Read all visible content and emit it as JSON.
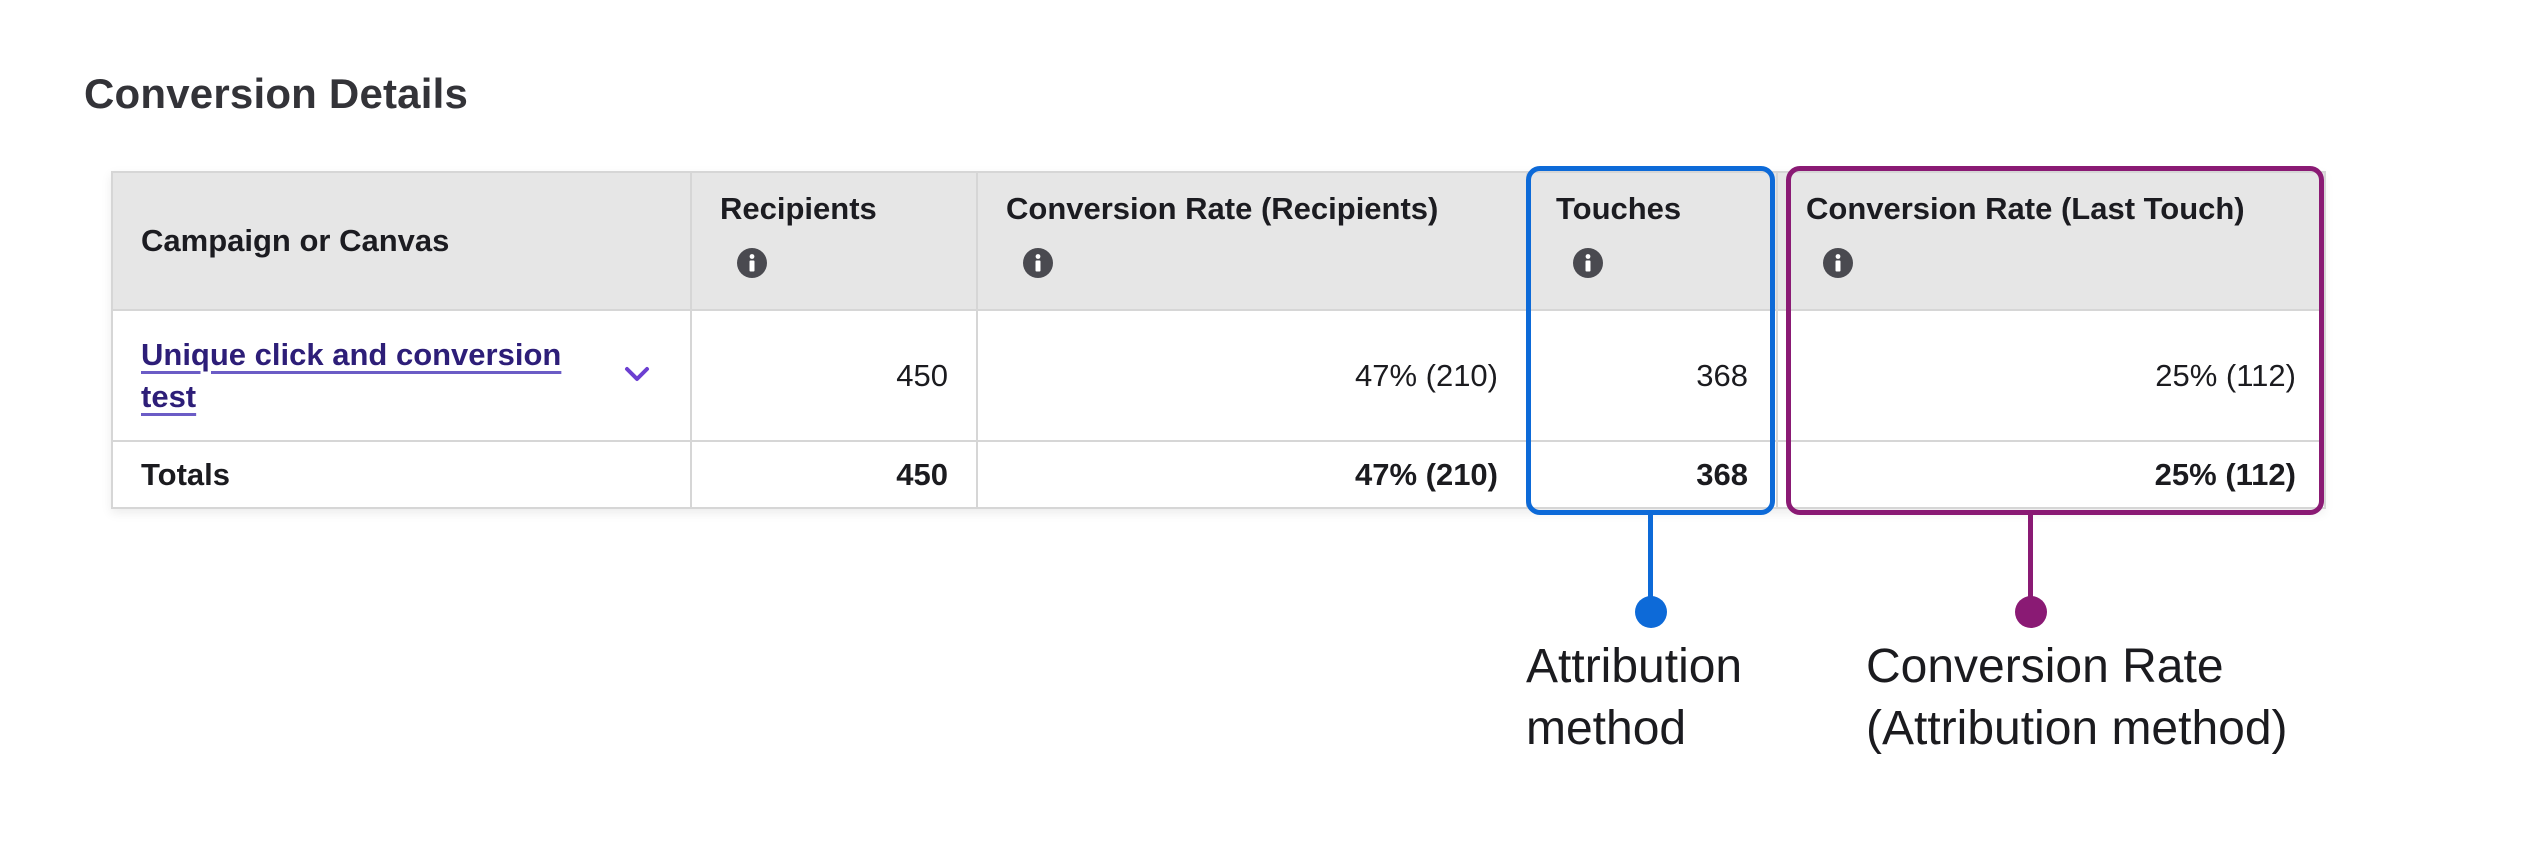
{
  "page_title": "Conversion Details",
  "table": {
    "headers": [
      "Campaign or Canvas",
      "Recipients",
      "Conversion Rate (Recipients)",
      "Touches",
      "Conversion Rate (Last Touch)"
    ],
    "rows": [
      {
        "name": "Unique click and conversion test",
        "recipients": "450",
        "conv_rate_recipients": "47% (210)",
        "touches": "368",
        "conv_rate_last_touch": "25% (112)"
      }
    ],
    "totals": {
      "label": "Totals",
      "recipients": "450",
      "conv_rate_recipients": "47% (210)",
      "touches": "368",
      "conv_rate_last_touch": "25% (112)"
    }
  },
  "annotations": {
    "attribution": {
      "line1": "Attribution",
      "line2": "method"
    },
    "conversion": {
      "line1": "Conversion Rate",
      "line2": "(Attribution method)"
    }
  },
  "icons": {
    "info": "info-icon",
    "expand": "chevron-down-icon"
  },
  "colors": {
    "highlight_touches": "#0d6ad8",
    "highlight_conversion": "#8a1a74",
    "link": "#2d1e78",
    "chevron": "#6c3fd1",
    "header_bg": "#e6e6e6"
  }
}
